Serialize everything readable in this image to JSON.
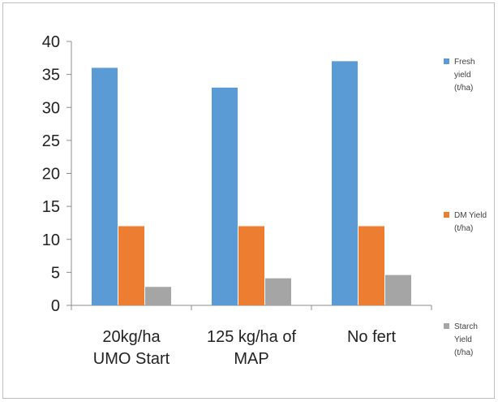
{
  "chart_data": {
    "type": "bar",
    "categories": [
      [
        "20kg/ha",
        "UMO Start"
      ],
      [
        "125 kg/ha of",
        "MAP"
      ],
      [
        "No fert"
      ]
    ],
    "series": [
      {
        "name": "Fresh yield (t/ha)",
        "legend_lines": [
          "Fresh",
          "yield",
          "(t/ha)"
        ],
        "color": "#5b9bd5",
        "values": [
          36,
          33,
          37
        ]
      },
      {
        "name": "DM Yield (t/ha)",
        "legend_lines": [
          "DM Yield",
          "(t/ha)"
        ],
        "color": "#ed7d31",
        "values": [
          12,
          12,
          12
        ]
      },
      {
        "name": "Starch Yield (t/ha)",
        "legend_lines": [
          "Starch",
          "Yield",
          "(t/ha)"
        ],
        "color": "#a5a5a5",
        "values": [
          2.8,
          4.1,
          4.6
        ]
      }
    ],
    "yticks": [
      "0",
      "5",
      "10",
      "15",
      "20",
      "25",
      "30",
      "35",
      "40"
    ],
    "ylim": [
      0,
      40
    ],
    "title": "",
    "xlabel": "",
    "ylabel": "",
    "grid": false,
    "legend_position": "right"
  }
}
